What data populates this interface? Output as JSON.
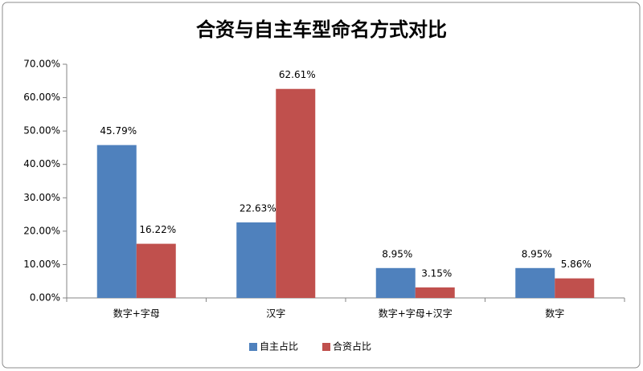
{
  "chart_data": {
    "type": "bar",
    "title": "合资与自主车型命名方式对比",
    "categories": [
      "数字+字母",
      "汉字",
      "数字+字母+汉字",
      "数字"
    ],
    "series": [
      {
        "name": "自主占比",
        "color": "#4f81bd",
        "values": [
          45.79,
          22.63,
          8.95,
          8.95
        ],
        "value_labels": [
          "45.79%",
          "22.63%",
          "8.95%",
          "8.95%"
        ]
      },
      {
        "name": "合资占比",
        "color": "#c0504d",
        "values": [
          16.22,
          62.61,
          3.15,
          5.86
        ],
        "value_labels": [
          "16.22%",
          "62.61%",
          "3.15%",
          "5.86%"
        ]
      }
    ],
    "ylim": [
      0,
      70
    ],
    "yticks": [
      {
        "value": 0,
        "label": "0.00%"
      },
      {
        "value": 10,
        "label": "10.00%"
      },
      {
        "value": 20,
        "label": "20.00%"
      },
      {
        "value": 30,
        "label": "30.00%"
      },
      {
        "value": 40,
        "label": "40.00%"
      },
      {
        "value": 50,
        "label": "50.00%"
      },
      {
        "value": 60,
        "label": "60.00%"
      },
      {
        "value": 70,
        "label": "70.00%"
      }
    ],
    "grid": false,
    "legend": "bottom"
  }
}
